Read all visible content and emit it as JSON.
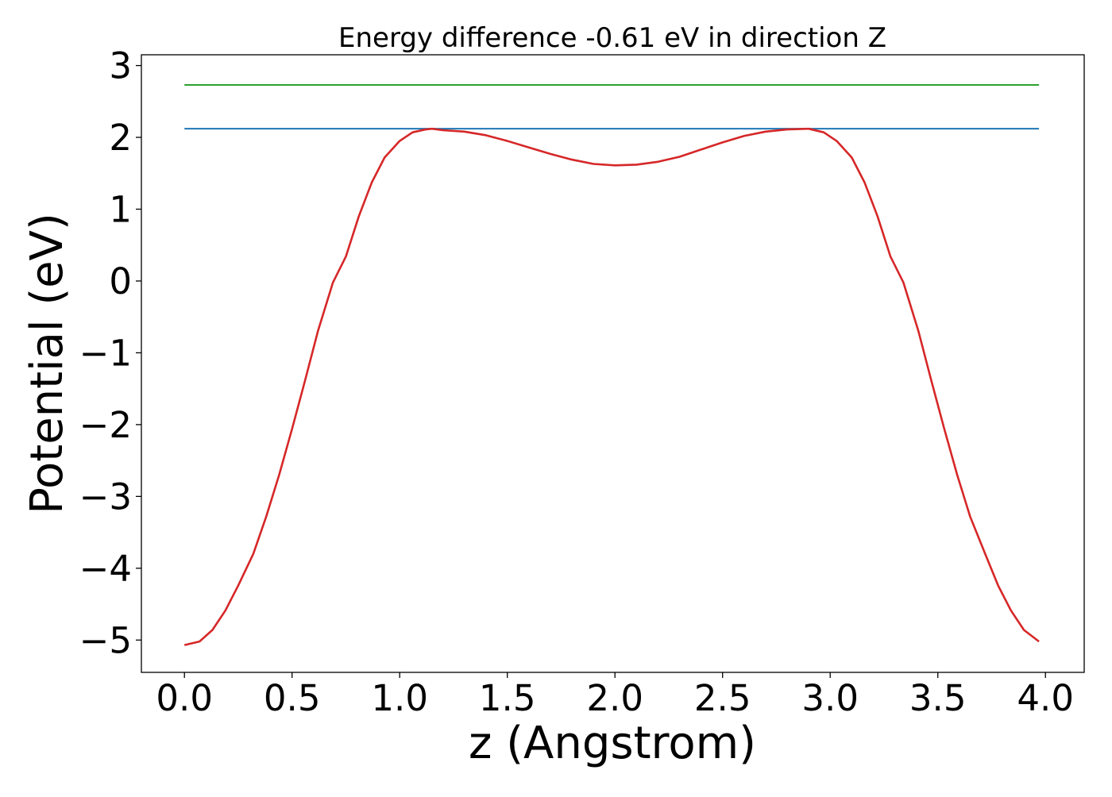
{
  "chart_data": {
    "type": "line",
    "title": "Energy difference -0.61 eV in direction Z",
    "xlabel": "z (Angstrom)",
    "ylabel": "Potential (eV)",
    "xlim": [
      -0.2,
      4.18
    ],
    "ylim": [
      -5.45,
      3.15
    ],
    "xticks": [
      0.0,
      0.5,
      1.0,
      1.5,
      2.0,
      2.5,
      3.0,
      3.5,
      4.0
    ],
    "xtick_labels": [
      "0.0",
      "0.5",
      "1.0",
      "1.5",
      "2.0",
      "2.5",
      "3.0",
      "3.5",
      "4.0"
    ],
    "yticks": [
      3,
      2,
      1,
      0,
      -1,
      -2,
      -3,
      -4,
      -5
    ],
    "ytick_labels": [
      "3",
      "2",
      "1",
      "0",
      "−1",
      "−2",
      "−3",
      "−4",
      "−5"
    ],
    "grid": false,
    "series": [
      {
        "color": "#2ca02c",
        "x": [
          0.0,
          3.97
        ],
        "y": [
          2.73,
          2.73
        ]
      },
      {
        "color": "#1f77b4",
        "x": [
          0.0,
          3.97
        ],
        "y": [
          2.12,
          2.12
        ]
      },
      {
        "color": "#d62728",
        "x": [
          0.0,
          0.07,
          0.13,
          0.19,
          0.25,
          0.32,
          0.38,
          0.44,
          0.5,
          0.56,
          0.62,
          0.69,
          0.75,
          0.81,
          0.87,
          0.93,
          1.0,
          1.06,
          1.12,
          1.15,
          1.2,
          1.3,
          1.4,
          1.5,
          1.6,
          1.7,
          1.8,
          1.9,
          2.0,
          2.1,
          2.2,
          2.3,
          2.4,
          2.5,
          2.6,
          2.7,
          2.8,
          2.9,
          2.97,
          3.03,
          3.1,
          3.16,
          3.22,
          3.28,
          3.34,
          3.41,
          3.47,
          3.53,
          3.59,
          3.65,
          3.72,
          3.78,
          3.84,
          3.9,
          3.97
        ],
        "y": [
          -5.07,
          -5.02,
          -4.86,
          -4.59,
          -4.24,
          -3.8,
          -3.28,
          -2.7,
          -2.06,
          -1.39,
          -0.7,
          -0.02,
          0.34,
          0.9,
          1.37,
          1.72,
          1.95,
          2.07,
          2.11,
          2.12,
          2.1,
          2.08,
          2.03,
          1.95,
          1.86,
          1.77,
          1.69,
          1.63,
          1.61,
          1.62,
          1.66,
          1.73,
          1.83,
          1.93,
          2.02,
          2.08,
          2.11,
          2.12,
          2.07,
          1.95,
          1.72,
          1.37,
          0.9,
          0.34,
          -0.02,
          -0.7,
          -1.39,
          -2.06,
          -2.7,
          -3.28,
          -3.8,
          -4.24,
          -4.59,
          -4.86,
          -5.02
        ]
      }
    ]
  }
}
